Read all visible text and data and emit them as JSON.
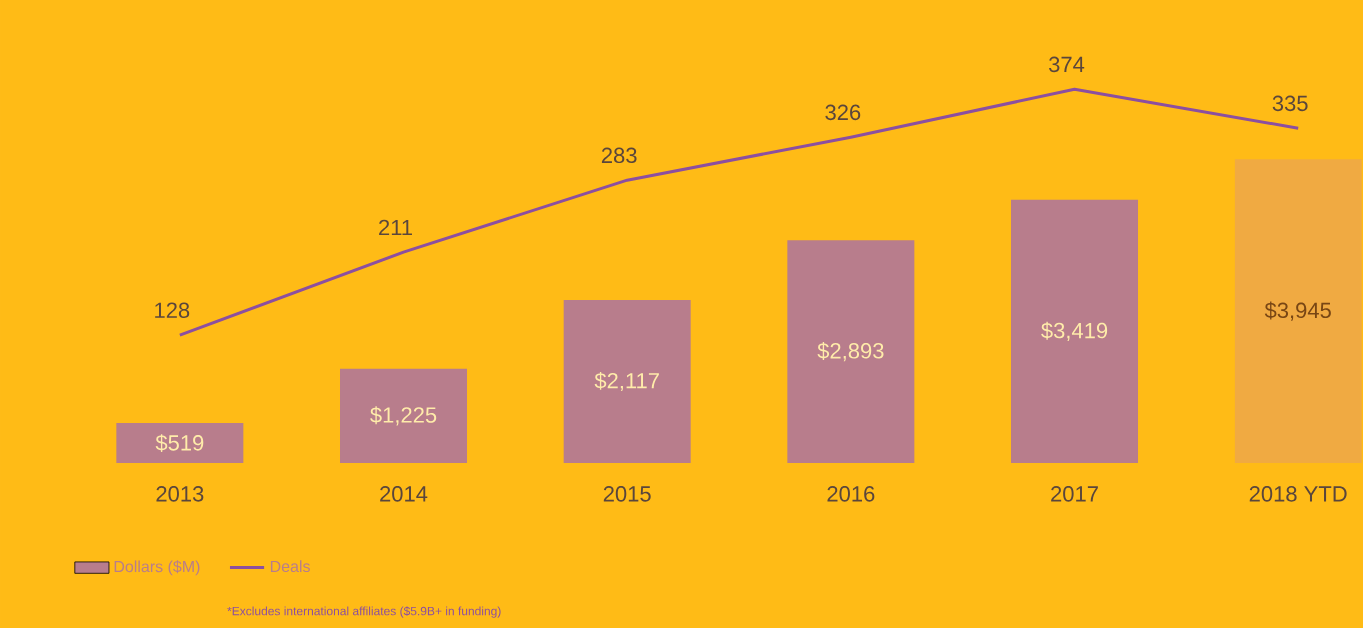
{
  "chart_data": {
    "type": "bar",
    "categories": [
      "2013",
      "2014",
      "2015",
      "2016",
      "2017",
      "2018 YTD"
    ],
    "series": [
      {
        "name": "Dollars ($M)",
        "color": "#b87d8c",
        "colors": [
          "#b87d8c",
          "#b87d8c",
          "#b87d8c",
          "#b87d8c",
          "#b87d8c",
          "#f0aa42"
        ],
        "values": [
          519,
          1225,
          2117,
          2893,
          3419,
          3945
        ],
        "value_labels": [
          "$519",
          "$1,225",
          "$2,117",
          "$2,893",
          "$3,419",
          "$3,945"
        ]
      },
      {
        "name": "Deals",
        "type": "line",
        "axis": "y2",
        "color": "#8c4fa0",
        "values": [
          128,
          211,
          283,
          326,
          374,
          335
        ],
        "value_labels": [
          "128",
          "211",
          "283",
          "326",
          "374",
          "335"
        ]
      }
    ],
    "legend": "bottom left",
    "annotations": [
      "*Excludes international affiliates ($5.9B+ in funding)"
    ]
  }
}
